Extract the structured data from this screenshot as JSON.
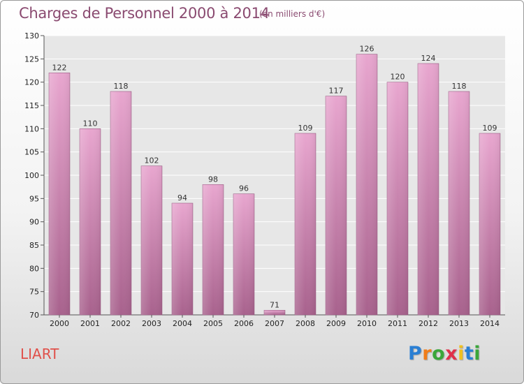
{
  "header": {
    "title": "Charges de Personnel 2000 à 2014",
    "subtitle": "(en milliers d'€)"
  },
  "footer": {
    "commune": "LIART",
    "logo_text": "Proxiti",
    "logo_colors": [
      "#2a7fd4",
      "#f07d1a",
      "#3aa63a",
      "#e0304a",
      "#f0c020",
      "#2a7fd4",
      "#3aa63a"
    ]
  },
  "colors": {
    "bar_top": "#e8a6cf",
    "bar_bottom": "#a8628d",
    "plot_background": "#e7e7e7",
    "grid": "#ffffff"
  },
  "chart_data": {
    "type": "bar",
    "title": "Charges de Personnel 2000 à 2014",
    "subtitle": "(en milliers d'€)",
    "xlabel": "",
    "ylabel": "",
    "categories": [
      "2000",
      "2001",
      "2002",
      "2003",
      "2004",
      "2005",
      "2006",
      "2007",
      "2008",
      "2009",
      "2010",
      "2011",
      "2012",
      "2013",
      "2014"
    ],
    "values": [
      122,
      110,
      118,
      102,
      94,
      98,
      96,
      71,
      109,
      117,
      126,
      120,
      124,
      118,
      109
    ],
    "ylim": [
      70,
      130
    ],
    "yticks": [
      70,
      75,
      80,
      85,
      90,
      95,
      100,
      105,
      110,
      115,
      120,
      125,
      130
    ],
    "grid": true,
    "legend": "none"
  }
}
